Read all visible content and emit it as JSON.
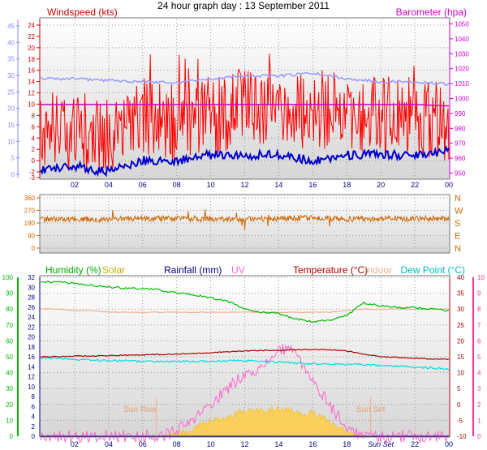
{
  "title": "24 hour graph day : 13 September 2011",
  "x_ticks": [
    "02",
    "04",
    "06",
    "08",
    "10",
    "12",
    "14",
    "16",
    "18",
    "20",
    "22",
    "00"
  ],
  "bottom_x_ticks": [
    "02",
    "04",
    "06",
    "08",
    "10",
    "12",
    "14",
    "16",
    "18",
    "Sun Set",
    "22",
    "00"
  ],
  "colors": {
    "windspeed": "#ff0000",
    "gust": "#a00000",
    "wind_avg": "#0000cc",
    "barometer": "#cc00cc",
    "barometer_alt": "#9999ff",
    "direction": "#cc6600",
    "humidity": "#00bb00",
    "solar": "#ffcc44",
    "rainfall": "#000080",
    "uv": "#ff66cc",
    "temperature": "#aa0000",
    "indoor": "#f0b090",
    "dewpoint": "#00dddd",
    "dewpoint_axis": "#00aaaa",
    "left_axis_1": "#8888ff",
    "left_axis_2": "#cc6600",
    "right_axis_3": "#ff3399"
  },
  "chart_data": [
    {
      "type": "line",
      "title": "",
      "labels": {
        "left": "Windspeed (kts)",
        "right": "Barometer (hpa)"
      },
      "x": [
        0,
        2,
        4,
        6,
        8,
        10,
        12,
        14,
        16,
        18,
        20,
        22,
        24
      ],
      "xlim": [
        0,
        24
      ],
      "ylim_left": [
        -3,
        25
      ],
      "ylim_right": [
        947,
        1053
      ],
      "left_ticks": [
        -3,
        -2,
        0,
        2,
        4,
        6,
        8,
        10,
        12,
        14,
        16,
        18,
        20,
        22,
        24
      ],
      "left_ticks_outer": [
        0,
        5,
        10,
        15,
        20,
        25,
        30,
        35,
        40,
        45
      ],
      "right_ticks": [
        950,
        960,
        970,
        980,
        990,
        1000,
        1010,
        1020,
        1030,
        1040,
        1050
      ],
      "grid": true,
      "series": [
        {
          "name": "Windspeed (kts)",
          "axis": "left",
          "values": [
            6,
            5,
            4,
            7,
            7,
            8,
            9,
            9,
            9,
            9,
            8,
            8,
            6
          ]
        },
        {
          "name": "",
          "axis": "left",
          "values": [
            -1.5,
            -1,
            -2,
            0,
            0,
            1,
            1,
            1,
            0,
            1,
            1,
            1,
            2
          ]
        },
        {
          "name": "",
          "axis": "left",
          "values": [
            14.5,
            14.5,
            14.2,
            14,
            13.8,
            14.5,
            15,
            15,
            15.5,
            14.5,
            14,
            14,
            13.5
          ]
        },
        {
          "name": "Barometer (hpa)",
          "axis": "right",
          "values": [
            996,
            996,
            996,
            996,
            996,
            996,
            996,
            996,
            996,
            996,
            996,
            996,
            995
          ]
        }
      ]
    },
    {
      "type": "line",
      "title": "",
      "labels": {
        "direction_letters": [
          "N",
          "W",
          "S",
          "E",
          "N"
        ]
      },
      "x": [
        0,
        2,
        4,
        6,
        8,
        10,
        12,
        14,
        16,
        18,
        20,
        22,
        24
      ],
      "xlim": [
        0,
        24
      ],
      "ylim": [
        0,
        360
      ],
      "ticks": [
        0,
        90,
        180,
        270,
        360
      ],
      "grid": true,
      "series": [
        {
          "name": "",
          "values": [
            205,
            210,
            208,
            212,
            210,
            210,
            208,
            212,
            215,
            208,
            212,
            210,
            215
          ]
        }
      ]
    },
    {
      "type": "line",
      "title": "",
      "labels": {
        "humidity": "Humidity (%)",
        "solar": "Solar",
        "rainfall": "Rainfall (mm)",
        "uv": "UV",
        "temperature": "Temperature (°C)",
        "indoor": "Indoor",
        "dewpoint": "Dew Point (°C)",
        "sunrise": "Sun Rise",
        "sunset": "Sun Set"
      },
      "x": [
        0,
        1,
        2,
        3,
        4,
        5,
        6,
        7,
        8,
        9,
        10,
        11,
        12,
        13,
        14,
        15,
        16,
        17,
        18,
        19,
        20,
        21,
        22,
        23,
        24
      ],
      "xlim": [
        0,
        24
      ],
      "sunrise_hour": 6.8,
      "sunset_hour": 19.4,
      "axes": {
        "humidity": {
          "range": [
            0,
            100
          ],
          "ticks": [
            0,
            10,
            20,
            30,
            40,
            50,
            60,
            70,
            80,
            90,
            100
          ]
        },
        "solar_rain": {
          "range": [
            0,
            32
          ],
          "ticks": [
            0,
            2,
            4,
            6,
            8,
            10,
            12,
            14,
            16,
            18,
            20,
            22,
            24,
            26,
            28,
            30,
            32
          ]
        },
        "temperature": {
          "range": [
            -10,
            40
          ],
          "ticks": [
            -10,
            -5,
            0,
            5,
            10,
            15,
            20,
            25,
            30,
            35,
            40
          ]
        },
        "uv": {
          "range": [
            0,
            10
          ],
          "ticks": [
            0,
            1,
            2,
            3,
            4,
            5,
            6,
            7,
            8,
            9,
            10
          ]
        }
      },
      "grid": true,
      "series": [
        {
          "name": "Humidity (%)",
          "axis": "humidity",
          "values": [
            97,
            97,
            96,
            95,
            94,
            93,
            93,
            92,
            90,
            89,
            87,
            85,
            80,
            78,
            77,
            74,
            72,
            73,
            76,
            84,
            82,
            81,
            81,
            80,
            79
          ]
        },
        {
          "name": "Indoor",
          "axis": "temperature",
          "values": [
            30,
            30,
            29.5,
            29.5,
            29,
            29,
            29,
            29,
            29,
            29,
            29,
            29,
            29,
            29,
            29,
            29,
            29,
            29,
            29.5,
            30,
            30,
            30,
            30,
            30,
            30
          ]
        },
        {
          "name": "Temperature (°C)",
          "axis": "temperature",
          "values": [
            15,
            15,
            15.2,
            15.2,
            15.4,
            15.5,
            15.6,
            15.7,
            15.8,
            16,
            16.3,
            16.6,
            16.8,
            17,
            17,
            17.2,
            17.3,
            17.2,
            16.8,
            15.8,
            15,
            14.8,
            14.6,
            14.3,
            14.2
          ]
        },
        {
          "name": "Dew Point (°C)",
          "axis": "temperature",
          "values": [
            14.5,
            14.5,
            14,
            14,
            13.8,
            13.7,
            13.5,
            13.5,
            13.5,
            13.5,
            13.6,
            13.7,
            13.8,
            13.5,
            13.3,
            13,
            12.8,
            12.7,
            12.6,
            12.5,
            12.2,
            12,
            11.8,
            11.5,
            11
          ]
        },
        {
          "name": "Solar",
          "axis": "solar_rain",
          "values": [
            0,
            0,
            0,
            0,
            0,
            0,
            0,
            0,
            0.5,
            1.5,
            3,
            4,
            5,
            5.2,
            5.5,
            5,
            4.5,
            3,
            1,
            0,
            0,
            0,
            0,
            0,
            0
          ]
        },
        {
          "name": "UV",
          "axis": "uv",
          "values": [
            0,
            0,
            0,
            0,
            0,
            0,
            0,
            0,
            0.3,
            1,
            2,
            3,
            4,
            4.2,
            5.5,
            5.2,
            3.5,
            2,
            0.5,
            0,
            0,
            0,
            0,
            0,
            0
          ]
        },
        {
          "name": "Rainfall (mm)",
          "axis": "solar_rain",
          "values": [
            0,
            0,
            0,
            0,
            0,
            0,
            0,
            0,
            0,
            0,
            0,
            0,
            0,
            0,
            0,
            0,
            0,
            0,
            0,
            0,
            0,
            0,
            0,
            0,
            0
          ]
        }
      ]
    }
  ]
}
